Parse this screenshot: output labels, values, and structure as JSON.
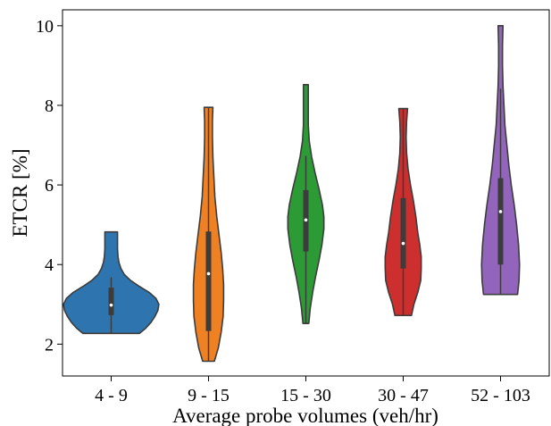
{
  "chart_data": {
    "type": "violin",
    "title": "",
    "xlabel": "Average probe volumes (veh/hr)",
    "ylabel": "ETCR [%]",
    "ylim": [
      1.2,
      10.4
    ],
    "yticks": [
      2,
      4,
      6,
      8,
      10
    ],
    "categories": [
      "4 - 9",
      "9 - 15",
      "15 - 30",
      "30 - 47",
      "52 - 103"
    ],
    "grid": false,
    "violins": [
      {
        "category": "4 - 9",
        "color": "#2e75b0",
        "min": 2.27,
        "max": 4.82,
        "q1": 2.73,
        "median": 2.98,
        "q3": 3.42,
        "whisker_low": 2.27,
        "whisker_high": 3.68,
        "profile": [
          [
            2.27,
            0.58
          ],
          [
            2.4,
            0.71
          ],
          [
            2.55,
            0.82
          ],
          [
            2.7,
            0.9
          ],
          [
            2.85,
            0.96
          ],
          [
            3.0,
            0.98
          ],
          [
            3.15,
            0.92
          ],
          [
            3.3,
            0.78
          ],
          [
            3.45,
            0.58
          ],
          [
            3.6,
            0.4
          ],
          [
            3.75,
            0.27
          ],
          [
            3.9,
            0.2
          ],
          [
            4.05,
            0.16
          ],
          [
            4.2,
            0.14
          ],
          [
            4.4,
            0.13
          ],
          [
            4.6,
            0.13
          ],
          [
            4.82,
            0.13
          ]
        ]
      },
      {
        "category": "9 - 15",
        "color": "#f08122",
        "min": 1.57,
        "max": 7.95,
        "q1": 2.33,
        "median": 3.77,
        "q3": 4.83,
        "whisker_low": 1.57,
        "whisker_high": 7.95,
        "profile": [
          [
            1.57,
            0.12
          ],
          [
            1.9,
            0.2
          ],
          [
            2.3,
            0.26
          ],
          [
            2.7,
            0.3
          ],
          [
            3.1,
            0.31
          ],
          [
            3.5,
            0.31
          ],
          [
            3.9,
            0.29
          ],
          [
            4.3,
            0.26
          ],
          [
            4.7,
            0.22
          ],
          [
            5.2,
            0.17
          ],
          [
            5.7,
            0.13
          ],
          [
            6.2,
            0.11
          ],
          [
            6.7,
            0.09
          ],
          [
            7.2,
            0.08
          ],
          [
            7.6,
            0.08
          ],
          [
            7.95,
            0.09
          ]
        ]
      },
      {
        "category": "15 - 30",
        "color": "#2c9b36",
        "min": 2.52,
        "max": 8.52,
        "q1": 4.33,
        "median": 5.12,
        "q3": 5.87,
        "whisker_low": 2.52,
        "whisker_high": 6.73,
        "profile": [
          [
            2.52,
            0.06
          ],
          [
            2.9,
            0.09
          ],
          [
            3.3,
            0.14
          ],
          [
            3.7,
            0.2
          ],
          [
            4.1,
            0.27
          ],
          [
            4.5,
            0.33
          ],
          [
            4.9,
            0.37
          ],
          [
            5.2,
            0.37
          ],
          [
            5.5,
            0.34
          ],
          [
            5.9,
            0.27
          ],
          [
            6.3,
            0.19
          ],
          [
            6.7,
            0.12
          ],
          [
            7.1,
            0.07
          ],
          [
            7.5,
            0.05
          ],
          [
            7.9,
            0.05
          ],
          [
            8.2,
            0.05
          ],
          [
            8.52,
            0.05
          ]
        ]
      },
      {
        "category": "30 - 47",
        "color": "#cd2f2e",
        "min": 2.72,
        "max": 7.92,
        "q1": 3.9,
        "median": 4.53,
        "q3": 5.67,
        "whisker_low": 2.72,
        "whisker_high": 7.92,
        "profile": [
          [
            2.72,
            0.17
          ],
          [
            3.0,
            0.22
          ],
          [
            3.3,
            0.3
          ],
          [
            3.6,
            0.36
          ],
          [
            3.9,
            0.37
          ],
          [
            4.2,
            0.37
          ],
          [
            4.5,
            0.34
          ],
          [
            4.8,
            0.3
          ],
          [
            5.2,
            0.26
          ],
          [
            5.6,
            0.21
          ],
          [
            6.0,
            0.15
          ],
          [
            6.4,
            0.1
          ],
          [
            6.8,
            0.07
          ],
          [
            7.2,
            0.06
          ],
          [
            7.6,
            0.07
          ],
          [
            7.92,
            0.09
          ]
        ]
      },
      {
        "category": "52 - 103",
        "color": "#9264bc",
        "min": 3.25,
        "max": 10.0,
        "q1": 4.0,
        "median": 5.33,
        "q3": 6.17,
        "whisker_low": 3.25,
        "whisker_high": 8.42,
        "profile": [
          [
            3.25,
            0.35
          ],
          [
            3.6,
            0.38
          ],
          [
            4.0,
            0.39
          ],
          [
            4.5,
            0.37
          ],
          [
            5.0,
            0.33
          ],
          [
            5.5,
            0.28
          ],
          [
            6.0,
            0.22
          ],
          [
            6.5,
            0.17
          ],
          [
            7.0,
            0.13
          ],
          [
            7.5,
            0.09
          ],
          [
            8.0,
            0.07
          ],
          [
            8.5,
            0.05
          ],
          [
            9.0,
            0.04
          ],
          [
            9.5,
            0.04
          ],
          [
            10.0,
            0.05
          ]
        ]
      }
    ]
  }
}
